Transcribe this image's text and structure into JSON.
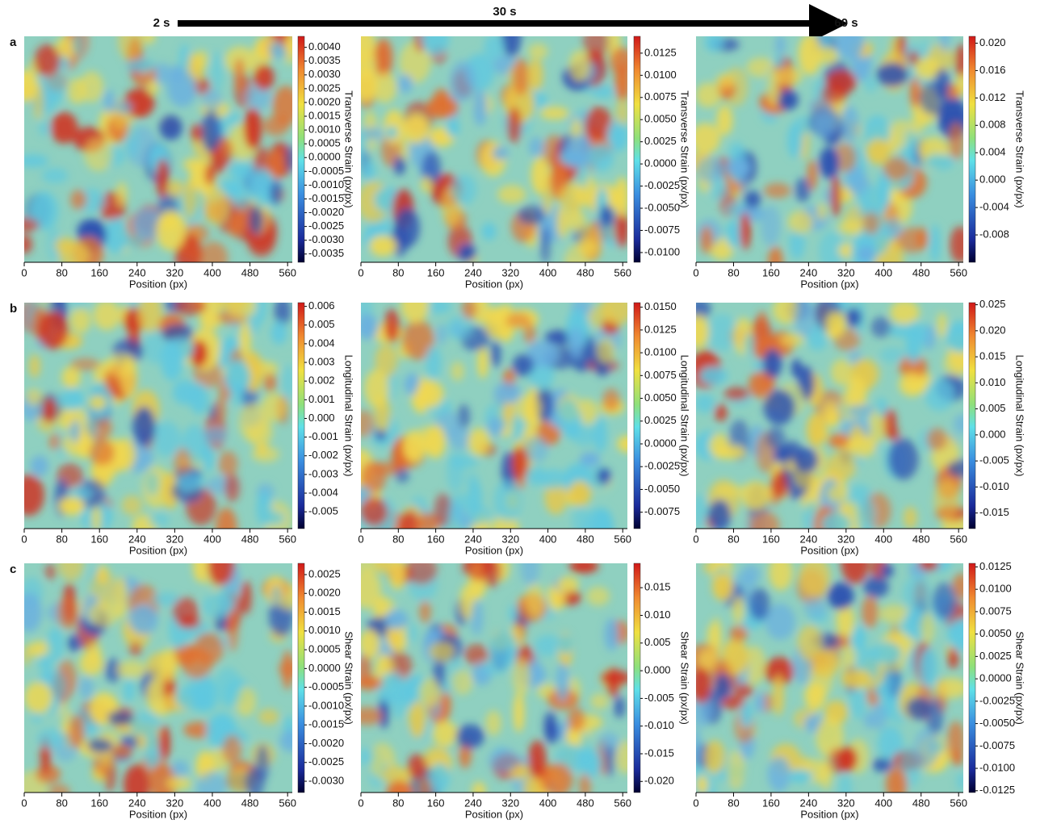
{
  "timeline": {
    "labels": [
      "2 s",
      "30 s",
      "60 s"
    ]
  },
  "chart_data": [
    {
      "type": "heatmap",
      "panel_label": "a",
      "xlabel": "Position (px)",
      "xlim": [
        0,
        570
      ],
      "xticks": [
        0,
        80,
        160,
        240,
        320,
        400,
        480,
        560
      ],
      "clabel": "Transverse Strain (px/px)",
      "clim": [
        -0.0038,
        0.0044
      ],
      "cticks": [
        {
          "value": 0.004,
          "label": "0.0040"
        },
        0.0035,
        {
          "value": 0.003,
          "label": "0.0030"
        },
        0.0025,
        {
          "value": 0.002,
          "label": "0.0020"
        },
        0.0015,
        {
          "value": 0.001,
          "label": "0.0010"
        },
        0.0005,
        {
          "value": 0,
          "label": "0.0000"
        },
        -0.0005,
        {
          "value": -0.001,
          "label": "-0.0010"
        },
        -0.0015,
        {
          "value": -0.002,
          "label": "-0.0020"
        },
        -0.0025,
        {
          "value": -0.003,
          "label": "-0.0030"
        },
        -0.0035
      ]
    },
    {
      "type": "heatmap",
      "xlabel": "Position (px)",
      "xlim": [
        0,
        570
      ],
      "xticks": [
        0,
        80,
        160,
        240,
        320,
        400,
        480,
        560
      ],
      "clabel": "Transverse Strain (px/px)",
      "clim": [
        -0.0111,
        0.0144
      ],
      "cticks": [
        0.0125,
        {
          "value": 0.01,
          "label": "0.0100"
        },
        0.0075,
        {
          "value": 0.005,
          "label": "0.0050"
        },
        0.0025,
        {
          "value": 0,
          "label": "0.0000"
        },
        -0.0025,
        {
          "value": -0.005,
          "label": "-0.0050"
        },
        -0.0075,
        {
          "value": -0.01,
          "label": "-0.0100"
        }
      ]
    },
    {
      "type": "heatmap",
      "xlabel": "Position (px)",
      "xlim": [
        0,
        570
      ],
      "xticks": [
        0,
        80,
        160,
        240,
        320,
        400,
        480,
        560
      ],
      "clabel": "Transverse Strain (px/px)",
      "clim": [
        -0.012,
        0.021
      ],
      "cticks": [
        {
          "value": 0.02,
          "label": "0.020"
        },
        0.016,
        0.012,
        0.008,
        0.004,
        {
          "value": 0,
          "label": "0.000"
        },
        -0.004,
        -0.008
      ]
    },
    {
      "type": "heatmap",
      "panel_label": "b",
      "xlabel": "Position (px)",
      "xlim": [
        0,
        570
      ],
      "xticks": [
        0,
        80,
        160,
        240,
        320,
        400,
        480,
        560
      ],
      "clabel": "Longitudinal Strain (px/px)",
      "clim": [
        -0.0059,
        0.0062
      ],
      "cticks": [
        0.006,
        0.005,
        0.004,
        0.003,
        0.002,
        0.001,
        {
          "value": 0,
          "label": "0.000"
        },
        -0.001,
        -0.002,
        -0.003,
        -0.004,
        -0.005
      ]
    },
    {
      "type": "heatmap",
      "xlabel": "Position (px)",
      "xlim": [
        0,
        570
      ],
      "xticks": [
        0,
        80,
        160,
        240,
        320,
        400,
        480,
        560
      ],
      "clabel": "Longitudinal Strain (px/px)",
      "clim": [
        -0.0093,
        0.0155
      ],
      "cticks": [
        {
          "value": 0.015,
          "label": "0.0150"
        },
        0.0125,
        {
          "value": 0.01,
          "label": "0.0100"
        },
        0.0075,
        {
          "value": 0.005,
          "label": "0.0050"
        },
        0.0025,
        {
          "value": 0,
          "label": "0.0000"
        },
        -0.0025,
        {
          "value": -0.005,
          "label": "-0.0050"
        },
        -0.0075
      ]
    },
    {
      "type": "heatmap",
      "xlabel": "Position (px)",
      "xlim": [
        0,
        570
      ],
      "xticks": [
        0,
        80,
        160,
        240,
        320,
        400,
        480,
        560
      ],
      "clabel": "Longitudinal Strain (px/px)",
      "clim": [
        -0.018,
        0.0254
      ],
      "cticks": [
        0.025,
        {
          "value": 0.02,
          "label": "0.020"
        },
        0.015,
        {
          "value": 0.01,
          "label": "0.010"
        },
        0.005,
        {
          "value": 0,
          "label": "0.000"
        },
        -0.005,
        {
          "value": -0.01,
          "label": "-0.010"
        },
        -0.015
      ]
    },
    {
      "type": "heatmap",
      "panel_label": "c",
      "xlabel": "Position (px)",
      "xlim": [
        0,
        570
      ],
      "xticks": [
        0,
        80,
        160,
        240,
        320,
        400,
        480,
        560
      ],
      "clabel": "Shear Strain (px/px)",
      "clim": [
        -0.0033,
        0.0028
      ],
      "cticks": [
        0.0025,
        {
          "value": 0.002,
          "label": "0.0020"
        },
        0.0015,
        {
          "value": 0.001,
          "label": "0.0010"
        },
        0.0005,
        {
          "value": 0,
          "label": "0.0000"
        },
        -0.0005,
        {
          "value": -0.001,
          "label": "-0.0010"
        },
        -0.0015,
        {
          "value": -0.002,
          "label": "-0.0020"
        },
        -0.0025,
        {
          "value": -0.003,
          "label": "-0.0030"
        }
      ]
    },
    {
      "type": "heatmap",
      "xlabel": "Position (px)",
      "xlim": [
        0,
        570
      ],
      "xticks": [
        0,
        80,
        160,
        240,
        320,
        400,
        480,
        560
      ],
      "clabel": "Shear Strain (px/px)",
      "clim": [
        -0.022,
        0.0194
      ],
      "cticks": [
        0.015,
        {
          "value": 0.01,
          "label": "0.010"
        },
        0.005,
        {
          "value": 0,
          "label": "0.000"
        },
        -0.005,
        {
          "value": -0.01,
          "label": "-0.010"
        },
        -0.015,
        {
          "value": -0.02,
          "label": "-0.020"
        }
      ]
    },
    {
      "type": "heatmap",
      "xlabel": "Position (px)",
      "xlim": [
        0,
        570
      ],
      "xticks": [
        0,
        80,
        160,
        240,
        320,
        400,
        480,
        560
      ],
      "clabel": "Shear Strain (px/px)",
      "clim": [
        -0.0127,
        0.0129
      ],
      "cticks": [
        0.0125,
        {
          "value": 0.01,
          "label": "0.0100"
        },
        0.0075,
        {
          "value": 0.005,
          "label": "0.0050"
        },
        0.0025,
        {
          "value": 0,
          "label": "0.0000"
        },
        -0.0025,
        {
          "value": -0.005,
          "label": "-0.0050"
        },
        -0.0075,
        {
          "value": -0.01,
          "label": "-0.0100"
        },
        -0.0125
      ]
    }
  ]
}
